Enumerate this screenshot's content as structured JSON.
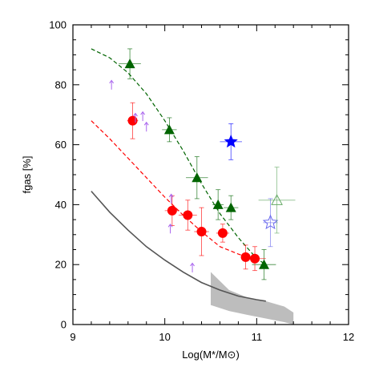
{
  "chart_data": {
    "type": "scatter",
    "xlabel": "Log(M*/M⊙)",
    "ylabel": "fgas [%]",
    "xlim": [
      9,
      12
    ],
    "ylim": [
      0,
      100
    ],
    "x_ticks": [
      "9",
      "10",
      "11",
      "12"
    ],
    "y_ticks": [
      "0",
      "20",
      "40",
      "60",
      "80",
      "100"
    ],
    "grid": false,
    "colors": {
      "green": "#006400",
      "red": "#ff0000",
      "blue": "#0000ff",
      "light_green": "#66aa66",
      "light_blue": "#6a6aee",
      "violet": "#aa66ee",
      "gray_band": "#bdbdbd",
      "gray_line": "#555555"
    },
    "series": [
      {
        "marker": "filled-triangle",
        "color": "#006400",
        "points": [
          {
            "x": 9.62,
            "y": 87,
            "xerr": 0.12,
            "yerr": 5
          },
          {
            "x": 10.05,
            "y": 65,
            "xerr": 0.08,
            "yerr": 4
          },
          {
            "x": 10.35,
            "y": 49,
            "xerr": 0.12,
            "yerr": 7
          },
          {
            "x": 10.58,
            "y": 40,
            "xerr": 0.06,
            "yerr": 5
          },
          {
            "x": 10.72,
            "y": 39,
            "xerr": 0.08,
            "yerr": 4
          },
          {
            "x": 11.08,
            "y": 20,
            "xerr": 0.13,
            "yerr": 5
          }
        ]
      },
      {
        "marker": "filled-circle",
        "color": "#ff0000",
        "points": [
          {
            "x": 9.65,
            "y": 68,
            "xerr": 0.06,
            "yerr": 6
          },
          {
            "x": 10.08,
            "y": 38,
            "xerr": 0.08,
            "yerr": 5
          },
          {
            "x": 10.25,
            "y": 36.5,
            "xerr": 0.1,
            "yerr": 5
          },
          {
            "x": 10.4,
            "y": 31,
            "xerr": 0.08,
            "yerr": 8
          },
          {
            "x": 10.63,
            "y": 30.5,
            "xerr": 0.07,
            "yerr": 3
          },
          {
            "x": 10.88,
            "y": 22.5,
            "xerr": 0.05,
            "yerr": 4
          },
          {
            "x": 10.98,
            "y": 22,
            "xerr": 0.12,
            "yerr": 4
          }
        ]
      },
      {
        "marker": "filled-star",
        "color": "#0000ff",
        "points": [
          {
            "x": 10.72,
            "y": 61,
            "xerr": 0.12,
            "yerr": 6
          }
        ]
      },
      {
        "marker": "open-star",
        "color": "#6a6aee",
        "points": [
          {
            "x": 11.15,
            "y": 34,
            "xerr": 0.08,
            "yerr": 8
          }
        ]
      },
      {
        "marker": "open-triangle",
        "color": "#66aa66",
        "points": [
          {
            "x": 11.22,
            "y": 41.5,
            "xerr": 0.2,
            "yerr": 11
          }
        ]
      },
      {
        "marker": "up-arrow",
        "color": "#aa66ee",
        "points": [
          {
            "x": 9.42,
            "y": 80
          },
          {
            "x": 9.68,
            "y": 69
          },
          {
            "x": 9.76,
            "y": 69.5
          },
          {
            "x": 9.8,
            "y": 66
          },
          {
            "x": 10.07,
            "y": 42
          },
          {
            "x": 10.06,
            "y": 32
          },
          {
            "x": 10.3,
            "y": 19
          }
        ]
      }
    ],
    "curves": [
      {
        "style": "dashed",
        "color": "#006400",
        "x": [
          9.2,
          9.4,
          9.6,
          9.8,
          10.0,
          10.2,
          10.4,
          10.6,
          10.8,
          11.0,
          11.1
        ],
        "y": [
          92,
          89,
          84,
          77,
          68,
          58,
          47,
          37,
          29,
          22,
          20
        ]
      },
      {
        "style": "dashed",
        "color": "#ff0000",
        "x": [
          9.2,
          9.4,
          9.6,
          9.8,
          10.0,
          10.2,
          10.4,
          10.6,
          10.8,
          11.0,
          11.05
        ],
        "y": [
          68,
          62,
          55.5,
          49,
          42.5,
          36.5,
          31,
          26,
          23.5,
          21.5,
          21
        ]
      },
      {
        "style": "solid",
        "color": "#555555",
        "x": [
          9.2,
          9.4,
          9.6,
          9.8,
          10.0,
          10.2,
          10.4,
          10.6,
          10.8,
          11.0,
          11.1
        ],
        "y": [
          44.5,
          37.5,
          31.5,
          26,
          21.5,
          17.5,
          14,
          11.5,
          9.5,
          8.3,
          7.8
        ]
      }
    ],
    "band": {
      "color": "#bdbdbd",
      "x": [
        10.5,
        10.7,
        10.9,
        11.1,
        11.3,
        11.4
      ],
      "upper": [
        17.5,
        11.5,
        9,
        7.8,
        6,
        4
      ],
      "lower": [
        6.5,
        4.5,
        3.2,
        2,
        0.8,
        0
      ]
    }
  }
}
